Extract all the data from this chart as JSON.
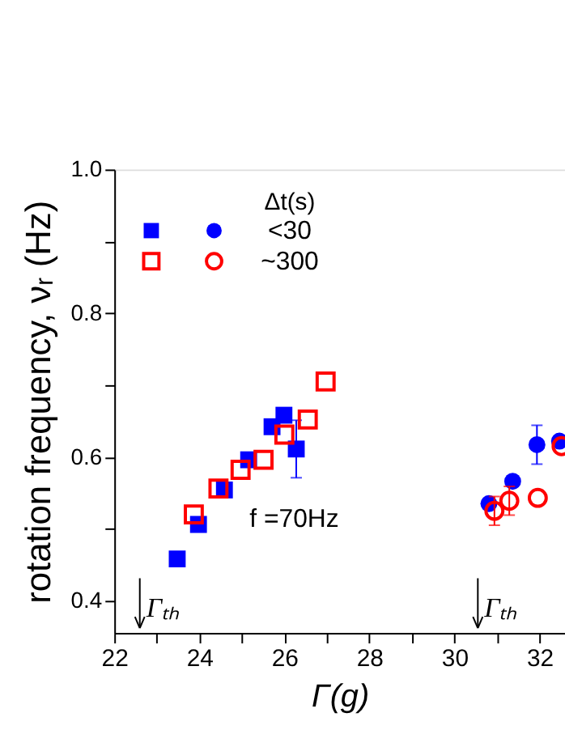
{
  "chart_data": {
    "type": "scatter",
    "xlabel": "Γ(g)",
    "ylabel": "rotation frequency, νᵣ (Hz)",
    "legend_title": "Δt(s)",
    "xlim": [
      22,
      32.6
    ],
    "ylim": [
      0.355,
      1.0
    ],
    "xticks": [
      22,
      {
        "value": 23,
        "label": null
      },
      24,
      {
        "value": 25,
        "label": null
      },
      26,
      {
        "value": 27,
        "label": null
      },
      28,
      {
        "value": 29,
        "label": null
      },
      30,
      {
        "value": 31,
        "label": null
      },
      32
    ],
    "yticks": [
      {
        "value": 0.4,
        "label": "0.4"
      },
      {
        "value": 0.5,
        "label": null
      },
      {
        "value": 0.6,
        "label": "0.6"
      },
      {
        "value": 0.7,
        "label": null
      },
      {
        "value": 0.8,
        "label": "0.8"
      },
      {
        "value": 0.9,
        "label": null
      },
      {
        "value": 1.0,
        "label": "1.0"
      }
    ],
    "grid": false,
    "legend": "top left",
    "annotations": [
      "f =70Hz"
    ],
    "ref_lines": [
      {
        "axis": "x",
        "value": 22.6,
        "label": "Γₜₕ"
      },
      {
        "axis": "x",
        "value": 30.55,
        "label": "Γₜₕ"
      }
    ],
    "series": [
      {
        "color": "#0000ff",
        "marker": "square",
        "x": [
          23.48,
          23.98,
          24.59,
          25.16,
          25.71,
          25.99,
          26.28
        ],
        "values": [
          0.458,
          0.506,
          0.554,
          0.596,
          0.642,
          0.658,
          0.611
        ],
        "errors": [
          null,
          null,
          null,
          null,
          null,
          null,
          0.04
        ]
      },
      {
        "name": "<30",
        "color": "#0000ff",
        "marker": "circle",
        "x": [
          30.81,
          31.37,
          31.94,
          32.47
        ],
        "values": [
          0.535,
          0.566,
          0.617,
          0.622
        ],
        "errors": [
          null,
          null,
          0.027,
          null
        ]
      },
      {
        "color": "#ff0000",
        "marker": "square",
        "x": [
          23.87,
          24.45,
          24.97,
          25.51,
          26.0,
          26.55,
          26.97
        ],
        "values": [
          0.52,
          0.556,
          0.582,
          0.596,
          0.631,
          0.652,
          0.705
        ]
      },
      {
        "name": "~300",
        "color": "#ff0000",
        "marker": "circle",
        "x": [
          30.94,
          31.29,
          31.96,
          32.52
        ],
        "values": [
          0.525,
          0.539,
          0.543,
          0.615
        ],
        "errors": [
          0.02,
          0.02,
          null,
          null
        ]
      }
    ]
  }
}
